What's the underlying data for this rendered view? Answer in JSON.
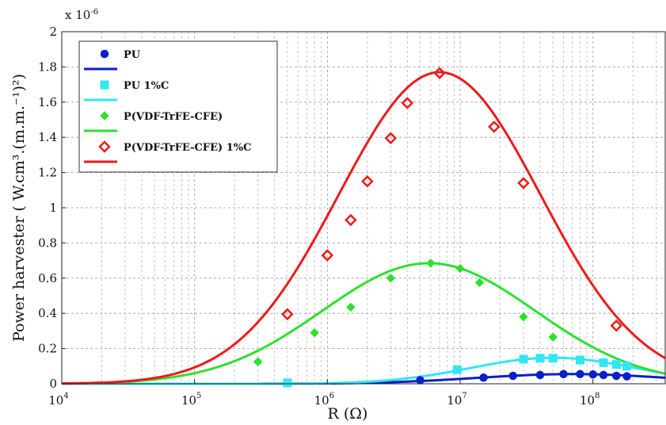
{
  "chart_data": {
    "type": "line",
    "x_scale": "log",
    "xlabel": "R (Ω)",
    "ylabel": "Power harvester ( W.cm³.(m.m.⁻¹)²)",
    "y_multiplier": "x 10",
    "y_multiplier_exp": "-6",
    "xlim": [
      10000,
      350000000
    ],
    "ylim": [
      0,
      2
    ],
    "x_ticks": [
      {
        "value": 10000,
        "base": "10",
        "exp": "4"
      },
      {
        "value": 100000,
        "base": "10",
        "exp": "5"
      },
      {
        "value": 1000000,
        "base": "10",
        "exp": "6"
      },
      {
        "value": 10000000,
        "base": "10",
        "exp": "7"
      },
      {
        "value": 100000000,
        "base": "10",
        "exp": "8"
      }
    ],
    "y_ticks": [
      {
        "value": 0,
        "label": "0"
      },
      {
        "value": 0.2,
        "label": "0.2"
      },
      {
        "value": 0.4,
        "label": "0.4"
      },
      {
        "value": 0.6,
        "label": "0.6"
      },
      {
        "value": 0.8,
        "label": "0.8"
      },
      {
        "value": 1.0,
        "label": "1"
      },
      {
        "value": 1.2,
        "label": "1.2"
      },
      {
        "value": 1.4,
        "label": "1.4"
      },
      {
        "value": 1.6,
        "label": "1.6"
      },
      {
        "value": 1.8,
        "label": "1.8"
      },
      {
        "value": 2.0,
        "label": "2"
      }
    ],
    "grid": true,
    "legend_position": "top-left",
    "series": [
      {
        "name": "PU",
        "color": "#0a1ecc",
        "marker": "circle",
        "points": [
          [
            5000000,
            0.02
          ],
          [
            15000000,
            0.035
          ],
          [
            25000000,
            0.045
          ],
          [
            40000000,
            0.05
          ],
          [
            60000000,
            0.055
          ],
          [
            80000000,
            0.055
          ],
          [
            100000000,
            0.053
          ],
          [
            120000000,
            0.05
          ],
          [
            150000000,
            0.045
          ],
          [
            180000000,
            0.042
          ]
        ],
        "fit": {
          "peak": 0.055,
          "center": 70000000,
          "sigma_decades": 0.72
        }
      },
      {
        "name": "PU 1%C",
        "color": "#33e6f2",
        "marker": "square",
        "points": [
          [
            500000,
            0.005
          ],
          [
            9500000,
            0.08
          ],
          [
            30000000,
            0.14
          ],
          [
            40000000,
            0.145
          ],
          [
            50000000,
            0.145
          ],
          [
            80000000,
            0.135
          ],
          [
            120000000,
            0.12
          ],
          [
            150000000,
            0.11
          ],
          [
            180000000,
            0.1
          ]
        ],
        "fit": {
          "peak": 0.148,
          "center": 50000000,
          "sigma_decades": 0.62
        }
      },
      {
        "name": "P(VDF-TrFE-CFE)",
        "color": "#2ee02e",
        "marker": "diamond",
        "points": [
          [
            300000,
            0.125
          ],
          [
            800000,
            0.29
          ],
          [
            1500000,
            0.435
          ],
          [
            3000000,
            0.6
          ],
          [
            6000000,
            0.685
          ],
          [
            10000000,
            0.655
          ],
          [
            14000000,
            0.575
          ],
          [
            30000000,
            0.38
          ],
          [
            50000000,
            0.265
          ]
        ],
        "fit": {
          "peak": 0.685,
          "center": 5800000,
          "sigma_decades": 0.8
        }
      },
      {
        "name": "P(VDF-TrFE-CFE)  1%C",
        "color": "#ee1a1a",
        "marker": "diamond-open",
        "points": [
          [
            500000,
            0.395
          ],
          [
            1000000,
            0.73
          ],
          [
            1500000,
            0.93
          ],
          [
            2000000,
            1.15
          ],
          [
            3000000,
            1.395
          ],
          [
            4000000,
            1.595
          ],
          [
            7000000,
            1.765
          ],
          [
            18000000,
            1.46
          ],
          [
            30000000,
            1.14
          ],
          [
            150000000,
            0.33
          ]
        ],
        "fit": {
          "peak": 1.77,
          "center": 7000000,
          "sigma_decades": 0.76
        }
      }
    ]
  }
}
